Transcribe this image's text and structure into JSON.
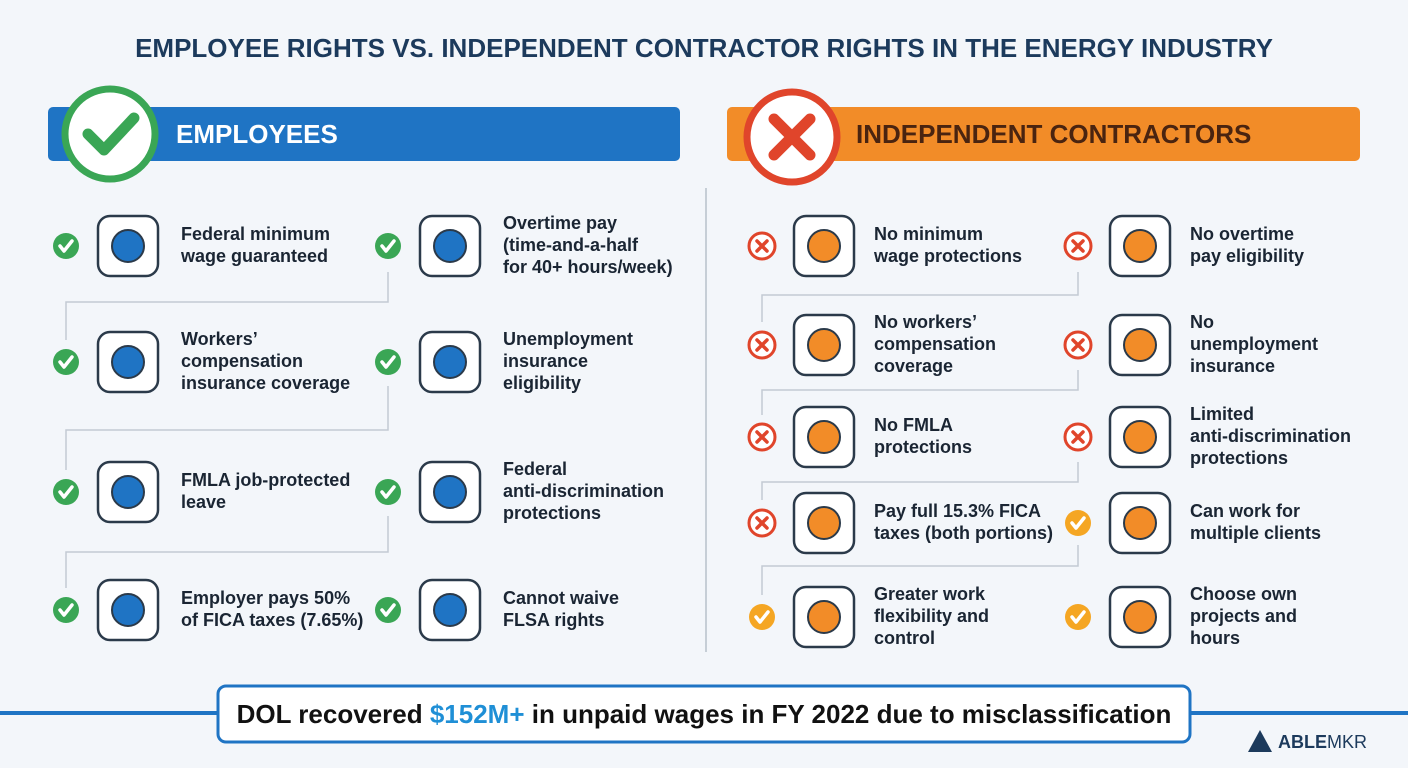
{
  "title": "EMPLOYEE RIGHTS VS. INDEPENDENT CONTRACTOR RIGHTS IN THE ENERGY INDUSTRY",
  "employees": {
    "header": "EMPLOYEES",
    "items": [
      {
        "lines": [
          "Federal minimum",
          "wage guaranteed"
        ],
        "status": "check"
      },
      {
        "lines": [
          "Overtime pay",
          "(time-and-a-half",
          "for 40+ hours/week)"
        ],
        "status": "check"
      },
      {
        "lines": [
          "Workers’",
          "compensation",
          "insurance coverage"
        ],
        "status": "check"
      },
      {
        "lines": [
          "Unemployment",
          "insurance",
          "eligibility"
        ],
        "status": "check"
      },
      {
        "lines": [
          "FMLA job-protected",
          "leave"
        ],
        "status": "check"
      },
      {
        "lines": [
          "Federal",
          "anti-discrimination",
          "protections"
        ],
        "status": "check"
      },
      {
        "lines": [
          "Employer pays 50%",
          "of FICA taxes (7.65%)"
        ],
        "status": "check"
      },
      {
        "lines": [
          "Cannot waive",
          "FLSA rights"
        ],
        "status": "check"
      }
    ]
  },
  "contractors": {
    "header": "INDEPENDENT CONTRACTORS",
    "items": [
      {
        "lines": [
          "No minimum",
          "wage protections"
        ],
        "status": "cross"
      },
      {
        "lines": [
          "No overtime",
          "pay eligibility"
        ],
        "status": "cross"
      },
      {
        "lines": [
          "No workers’",
          "compensation",
          "coverage"
        ],
        "status": "cross"
      },
      {
        "lines": [
          "No",
          "unemployment",
          "insurance"
        ],
        "status": "cross"
      },
      {
        "lines": [
          "No FMLA",
          "protections"
        ],
        "status": "cross"
      },
      {
        "lines": [
          "Limited",
          "anti-discrimination",
          "protections"
        ],
        "status": "cross"
      },
      {
        "lines": [
          "Pay full 15.3% FICA",
          "taxes (both portions)"
        ],
        "status": "cross"
      },
      {
        "lines": [
          "Can work for",
          "multiple clients"
        ],
        "status": "check"
      },
      {
        "lines": [
          "Greater work",
          "flexibility and",
          "control"
        ],
        "status": "check"
      },
      {
        "lines": [
          "Choose own",
          "projects and",
          "hours"
        ],
        "status": "check"
      }
    ]
  },
  "banner": {
    "before": "DOL recovered",
    "highlight": "$152M+",
    "after": "in unpaid wages in FY 2022 due to misclassification"
  },
  "logo": {
    "first": "ABLE",
    "second": "MKR"
  }
}
